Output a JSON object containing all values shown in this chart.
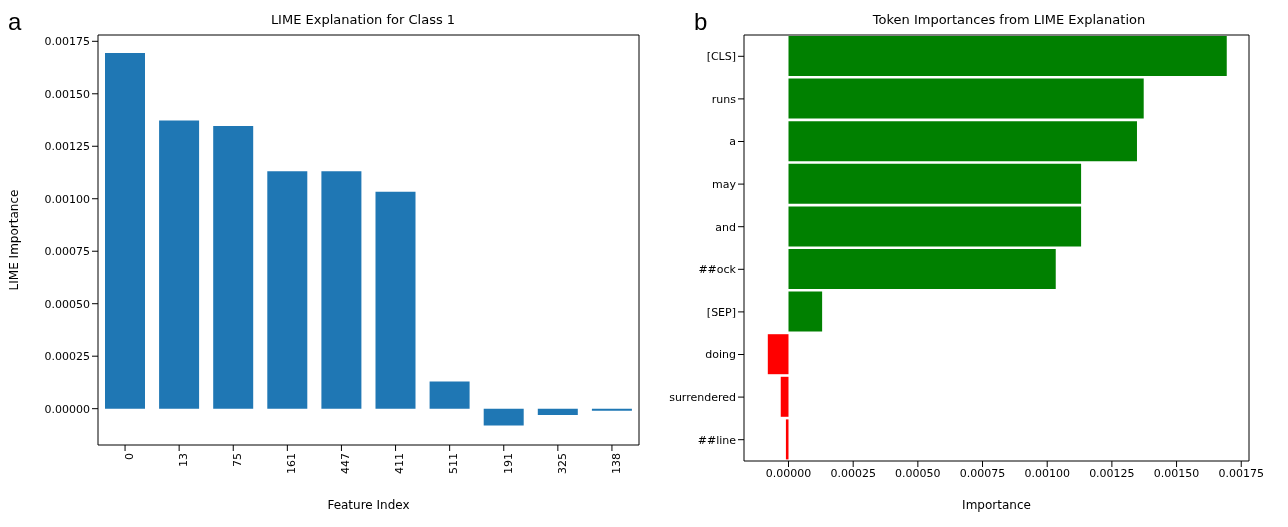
{
  "chart_data": [
    {
      "type": "bar",
      "title": "LIME Explanation for Class 1",
      "xlabel": "Feature Index",
      "ylabel": "LIME Importance",
      "annotations": [
        "a"
      ],
      "categories": [
        "0",
        "13",
        "75",
        "161",
        "447",
        "411",
        "511",
        "191",
        "325",
        "138"
      ],
      "values": [
        0.001694,
        0.001373,
        0.001347,
        0.001131,
        0.001131,
        0.001033,
        0.00013,
        -8e-05,
        -3e-05,
        -1e-05
      ],
      "color": "#1f77b4",
      "ylim": [
        -0.000173,
        0.00178
      ],
      "yticks": [
        {
          "value": 0,
          "label": "0.00000"
        },
        {
          "value": 0.00025,
          "label": "0.00025"
        },
        {
          "value": 0.0005,
          "label": "0.00050"
        },
        {
          "value": 0.00075,
          "label": "0.00075"
        },
        {
          "value": 0.001,
          "label": "0.00100"
        },
        {
          "value": 0.00125,
          "label": "0.00125"
        },
        {
          "value": 0.0015,
          "label": "0.00150"
        },
        {
          "value": 0.00175,
          "label": "0.00175"
        }
      ]
    },
    {
      "type": "bar",
      "orientation": "horizontal",
      "title": "Token Importances from LIME Explanation",
      "xlabel": "Importance",
      "annotations": [
        "b"
      ],
      "categories": [
        "[CLS]",
        "runs",
        "a",
        "may",
        "and",
        "##ock",
        "[SEP]",
        "doing",
        "surrendered",
        "##line"
      ],
      "values": [
        0.001694,
        0.001373,
        0.001347,
        0.001131,
        0.001131,
        0.001033,
        0.00013,
        -8e-05,
        -3e-05,
        -1e-05
      ],
      "colors": [
        "#008000",
        "#008000",
        "#008000",
        "#008000",
        "#008000",
        "#008000",
        "#008000",
        "#ff0000",
        "#ff0000",
        "#ff0000"
      ],
      "xlim": [
        -0.000172,
        0.00178
      ],
      "xticks": [
        {
          "value": 0,
          "label": "0.00000"
        },
        {
          "value": 0.00025,
          "label": "0.00025"
        },
        {
          "value": 0.0005,
          "label": "0.00050"
        },
        {
          "value": 0.00075,
          "label": "0.00075"
        },
        {
          "value": 0.001,
          "label": "0.00100"
        },
        {
          "value": 0.00125,
          "label": "0.00125"
        },
        {
          "value": 0.0015,
          "label": "0.00150"
        },
        {
          "value": 0.00175,
          "label": "0.00175"
        }
      ]
    }
  ]
}
